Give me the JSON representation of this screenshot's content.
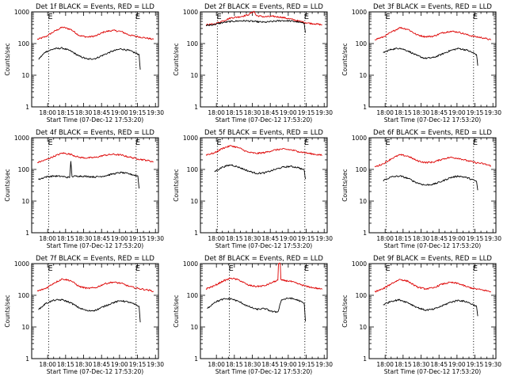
{
  "figure": {
    "background": "#ffffff",
    "events_color": "#000000",
    "lld_color": "#dd0000"
  },
  "chart_data": [
    {
      "type": "line",
      "title": "Det 1f BLACK = Events, RED = LLD",
      "xlabel": "Start Time (07-Dec-12 17:53:20)",
      "ylabel": "Counts/sec",
      "yscale": "log",
      "ylim": [
        1,
        1000
      ],
      "ytick_labels": [
        "1",
        "10",
        "100",
        "1000"
      ],
      "xlim_min": [
        -6.67,
        99.17
      ],
      "xtick_values_min": [
        6.67,
        21.67,
        36.67,
        51.67,
        66.67,
        81.67,
        96.67
      ],
      "xtick_labels": [
        "18:00",
        "18:15",
        "18:30",
        "18:45",
        "19:00",
        "19:15",
        "19:30"
      ],
      "markers": [
        {
          "label": "E",
          "x_min": 7.5
        },
        {
          "label": "E",
          "x_min": 80.5
        }
      ],
      "series": [
        {
          "color": "#dd0000",
          "x_min": [
            -2,
            5,
            12,
            19,
            26,
            33,
            40,
            47,
            54,
            61,
            68,
            75,
            82,
            89,
            95
          ],
          "values": [
            135,
            165,
            240,
            330,
            280,
            180,
            160,
            175,
            235,
            260,
            240,
            185,
            165,
            150,
            135
          ]
        },
        {
          "color": "#000000",
          "x_min": [
            -1,
            5,
            12,
            19,
            26,
            33,
            40,
            47,
            54,
            61,
            68,
            75,
            83,
            84
          ],
          "values": [
            32,
            55,
            68,
            72,
            58,
            40,
            32,
            34,
            45,
            58,
            68,
            60,
            45,
            15
          ]
        }
      ]
    },
    {
      "type": "line",
      "title": "Det 2f BLACK = Events, RED = LLD",
      "xlabel": "Start Time (07-Dec-12 17:53:20)",
      "ylabel": "Counts/sec",
      "yscale": "log",
      "ylim": [
        1,
        1000
      ],
      "ytick_labels": [
        "1",
        "10",
        "100",
        "1000"
      ],
      "xlim_min": [
        -6.67,
        99.17
      ],
      "xtick_values_min": [
        6.67,
        21.67,
        36.67,
        51.67,
        66.67,
        81.67,
        96.67
      ],
      "xtick_labels": [
        "18:00",
        "18:15",
        "18:30",
        "18:45",
        "19:00",
        "19:15",
        "19:30"
      ],
      "markers": [
        {
          "label": "E",
          "x_min": 7.5
        },
        {
          "label": "E",
          "x_min": 80.5
        }
      ],
      "series": [
        {
          "color": "#dd0000",
          "x_min": [
            -2,
            5,
            12,
            19,
            26,
            33,
            38,
            40,
            47,
            54,
            61,
            68,
            75,
            82,
            89,
            95
          ],
          "values": [
            390,
            410,
            520,
            650,
            700,
            800,
            1050,
            760,
            700,
            720,
            680,
            600,
            520,
            450,
            420,
            390
          ]
        },
        {
          "color": "#000000",
          "x_min": [
            -2,
            5,
            12,
            19,
            26,
            33,
            40,
            47,
            54,
            61,
            68,
            75,
            80,
            81
          ],
          "values": [
            370,
            400,
            460,
            500,
            520,
            520,
            490,
            470,
            500,
            530,
            520,
            480,
            430,
            220
          ]
        }
      ]
    },
    {
      "type": "line",
      "title": "Det 3f BLACK = Events, RED = LLD",
      "xlabel": "Start Time (07-Dec-12 17:53:20)",
      "ylabel": "Counts/sec",
      "yscale": "log",
      "ylim": [
        1,
        1000
      ],
      "ytick_labels": [
        "1",
        "10",
        "100",
        "1000"
      ],
      "xlim_min": [
        -6.67,
        99.17
      ],
      "xtick_values_min": [
        6.67,
        21.67,
        36.67,
        51.67,
        66.67,
        81.67,
        96.67
      ],
      "xtick_labels": [
        "18:00",
        "18:15",
        "18:30",
        "18:45",
        "19:00",
        "19:15",
        "19:30"
      ],
      "markers": [
        {
          "label": "E",
          "x_min": 7.5
        },
        {
          "label": "E",
          "x_min": 80.5
        }
      ],
      "series": [
        {
          "color": "#dd0000",
          "x_min": [
            -2,
            5,
            12,
            19,
            26,
            33,
            40,
            47,
            54,
            61,
            68,
            75,
            82,
            89,
            95
          ],
          "values": [
            135,
            160,
            230,
            320,
            280,
            190,
            165,
            170,
            215,
            245,
            230,
            190,
            165,
            150,
            130
          ]
        },
        {
          "color": "#000000",
          "x_min": [
            5,
            12,
            19,
            26,
            33,
            40,
            47,
            54,
            61,
            68,
            75,
            83,
            84
          ],
          "values": [
            52,
            66,
            72,
            58,
            42,
            34,
            36,
            46,
            60,
            70,
            62,
            45,
            20
          ]
        }
      ]
    },
    {
      "type": "line",
      "title": "Det 4f BLACK = Events, RED = LLD",
      "xlabel": "Start Time (07-Dec-12 17:53:20)",
      "ylabel": "Counts/sec",
      "yscale": "log",
      "ylim": [
        1,
        1000
      ],
      "ytick_labels": [
        "1",
        "10",
        "100",
        "1000"
      ],
      "xlim_min": [
        -6.67,
        99.17
      ],
      "xtick_values_min": [
        6.67,
        21.67,
        36.67,
        51.67,
        66.67,
        81.67,
        96.67
      ],
      "xtick_labels": [
        "18:00",
        "18:15",
        "18:30",
        "18:45",
        "19:00",
        "19:15",
        "19:30"
      ],
      "markers": [
        {
          "label": "E",
          "x_min": 7.5
        },
        {
          "label": "E",
          "x_min": 80.5
        }
      ],
      "series": [
        {
          "color": "#dd0000",
          "x_min": [
            -2,
            5,
            12,
            19,
            26,
            33,
            40,
            47,
            54,
            61,
            68,
            75,
            82,
            89,
            95
          ],
          "values": [
            165,
            200,
            260,
            330,
            300,
            240,
            230,
            240,
            280,
            300,
            285,
            245,
            215,
            195,
            175
          ]
        },
        {
          "color": "#000000",
          "x_min": [
            -1,
            5,
            12,
            19,
            25,
            26,
            27,
            33,
            40,
            47,
            54,
            61,
            68,
            75,
            82,
            83
          ],
          "values": [
            48,
            58,
            62,
            60,
            55,
            180,
            60,
            62,
            60,
            58,
            62,
            72,
            80,
            72,
            62,
            25
          ]
        }
      ]
    },
    {
      "type": "line",
      "title": "Det 5f BLACK = Events, RED = LLD",
      "xlabel": "Start Time (07-Dec-12 17:53:20)",
      "ylabel": "Counts/sec",
      "yscale": "log",
      "ylim": [
        1,
        1000
      ],
      "ytick_labels": [
        "1",
        "10",
        "100",
        "1000"
      ],
      "xlim_min": [
        -6.67,
        99.17
      ],
      "xtick_values_min": [
        6.67,
        21.67,
        36.67,
        51.67,
        66.67,
        81.67,
        96.67
      ],
      "xtick_labels": [
        "18:00",
        "18:15",
        "18:30",
        "18:45",
        "19:00",
        "19:15",
        "19:30"
      ],
      "markers": [
        {
          "label": "E",
          "x_min": 7.5
        },
        {
          "label": "E",
          "x_min": 80.5
        }
      ],
      "series": [
        {
          "color": "#dd0000",
          "x_min": [
            -2,
            5,
            12,
            19,
            26,
            33,
            40,
            47,
            54,
            61,
            68,
            75,
            82,
            89,
            95
          ],
          "values": [
            290,
            330,
            470,
            560,
            470,
            350,
            320,
            340,
            400,
            440,
            420,
            370,
            330,
            300,
            280
          ]
        },
        {
          "color": "#000000",
          "x_min": [
            5,
            12,
            19,
            26,
            33,
            40,
            47,
            54,
            61,
            68,
            75,
            80,
            81
          ],
          "values": [
            85,
            120,
            140,
            115,
            90,
            75,
            78,
            95,
            115,
            125,
            115,
            95,
            50
          ]
        }
      ]
    },
    {
      "type": "line",
      "title": "Det 6f BLACK = Events, RED = LLD",
      "xlabel": "Start Time (07-Dec-12 17:53:20)",
      "ylabel": "Counts/sec",
      "yscale": "log",
      "ylim": [
        1,
        1000
      ],
      "ytick_labels": [
        "1",
        "10",
        "100",
        "1000"
      ],
      "xlim_min": [
        -6.67,
        99.17
      ],
      "xtick_values_min": [
        6.67,
        21.67,
        36.67,
        51.67,
        66.67,
        81.67,
        96.67
      ],
      "xtick_labels": [
        "18:00",
        "18:15",
        "18:30",
        "18:45",
        "19:00",
        "19:15",
        "19:30"
      ],
      "markers": [
        {
          "label": "E",
          "x_min": 7.5
        },
        {
          "label": "E",
          "x_min": 80.5
        }
      ],
      "series": [
        {
          "color": "#dd0000",
          "x_min": [
            -2,
            5,
            12,
            19,
            26,
            33,
            40,
            47,
            54,
            61,
            68,
            75,
            82,
            89,
            95
          ],
          "values": [
            120,
            150,
            220,
            290,
            260,
            190,
            165,
            170,
            210,
            240,
            225,
            190,
            165,
            150,
            130
          ]
        },
        {
          "color": "#000000",
          "x_min": [
            5,
            12,
            19,
            26,
            33,
            40,
            47,
            54,
            61,
            68,
            75,
            83,
            84
          ],
          "values": [
            45,
            58,
            62,
            52,
            38,
            32,
            34,
            42,
            55,
            62,
            55,
            42,
            22
          ]
        }
      ]
    },
    {
      "type": "line",
      "title": "Det 7f BLACK = Events, RED = LLD",
      "xlabel": "Start Time (07-Dec-12 17:53:20)",
      "ylabel": "Counts/sec",
      "yscale": "log",
      "ylim": [
        1,
        1000
      ],
      "ytick_labels": [
        "1",
        "10",
        "100",
        "1000"
      ],
      "xlim_min": [
        -6.67,
        99.17
      ],
      "xtick_values_min": [
        6.67,
        21.67,
        36.67,
        51.67,
        66.67,
        81.67,
        96.67
      ],
      "xtick_labels": [
        "18:00",
        "18:15",
        "18:30",
        "18:45",
        "19:00",
        "19:15",
        "19:30"
      ],
      "markers": [
        {
          "label": "E",
          "x_min": 7.5
        },
        {
          "label": "E",
          "x_min": 80.5
        }
      ],
      "series": [
        {
          "color": "#dd0000",
          "x_min": [
            -2,
            5,
            12,
            19,
            26,
            33,
            40,
            47,
            54,
            61,
            68,
            75,
            82,
            89,
            95
          ],
          "values": [
            135,
            165,
            245,
            330,
            290,
            190,
            165,
            175,
            230,
            260,
            240,
            190,
            165,
            150,
            135
          ]
        },
        {
          "color": "#000000",
          "x_min": [
            -1,
            5,
            12,
            19,
            26,
            33,
            40,
            47,
            54,
            61,
            68,
            75,
            83,
            84
          ],
          "values": [
            35,
            55,
            70,
            72,
            58,
            40,
            32,
            34,
            45,
            58,
            68,
            60,
            45,
            14
          ]
        }
      ]
    },
    {
      "type": "line",
      "title": "Det 8f BLACK = Events, RED = LLD",
      "xlabel": "Start Time (07-Dec-12 17:53:20)",
      "ylabel": "Counts/sec",
      "yscale": "log",
      "ylim": [
        1,
        1000
      ],
      "ytick_labels": [
        "1",
        "10",
        "100",
        "1000"
      ],
      "xlim_min": [
        -6.67,
        99.17
      ],
      "xtick_values_min": [
        6.67,
        21.67,
        36.67,
        51.67,
        66.67,
        81.67,
        96.67
      ],
      "xtick_labels": [
        "18:00",
        "18:15",
        "18:30",
        "18:45",
        "19:00",
        "19:15",
        "19:30"
      ],
      "markers": [
        {
          "label": "E",
          "x_min": 17.5
        },
        {
          "label": "E",
          "x_min": 80.5
        }
      ],
      "series": [
        {
          "color": "#dd0000",
          "x_min": [
            -2,
            5,
            12,
            19,
            26,
            33,
            40,
            47,
            54,
            58,
            58.5,
            60,
            60.5,
            61,
            68,
            75,
            82,
            89,
            95
          ],
          "values": [
            160,
            200,
            280,
            350,
            300,
            210,
            190,
            200,
            260,
            300,
            1000,
            1000,
            320,
            300,
            280,
            230,
            190,
            170,
            155
          ]
        },
        {
          "color": "#000000",
          "x_min": [
            -1,
            5,
            12,
            19,
            26,
            33,
            40,
            47,
            54,
            58,
            61,
            68,
            75,
            80,
            81
          ],
          "values": [
            38,
            60,
            75,
            78,
            62,
            45,
            36,
            38,
            30,
            30,
            72,
            82,
            70,
            55,
            15
          ]
        }
      ]
    },
    {
      "type": "line",
      "title": "Det 9f BLACK = Events, RED = LLD",
      "xlabel": "Start Time (07-Dec-12 17:53:20)",
      "ylabel": "Counts/sec",
      "yscale": "log",
      "ylim": [
        1,
        1000
      ],
      "ytick_labels": [
        "1",
        "10",
        "100",
        "1000"
      ],
      "xlim_min": [
        -6.67,
        99.17
      ],
      "xtick_values_min": [
        6.67,
        21.67,
        36.67,
        51.67,
        66.67,
        81.67,
        96.67
      ],
      "xtick_labels": [
        "18:00",
        "18:15",
        "18:30",
        "18:45",
        "19:00",
        "19:15",
        "19:30"
      ],
      "markers": [
        {
          "label": "E",
          "x_min": 7.5
        },
        {
          "label": "E",
          "x_min": 80.5
        }
      ],
      "series": [
        {
          "color": "#dd0000",
          "x_min": [
            -2,
            5,
            12,
            19,
            26,
            33,
            40,
            47,
            54,
            61,
            68,
            75,
            82,
            89,
            95
          ],
          "values": [
            130,
            160,
            235,
            320,
            275,
            185,
            160,
            170,
            225,
            255,
            235,
            185,
            160,
            145,
            130
          ]
        },
        {
          "color": "#000000",
          "x_min": [
            5,
            12,
            19,
            26,
            33,
            40,
            47,
            54,
            61,
            68,
            75,
            83,
            84
          ],
          "values": [
            50,
            66,
            72,
            58,
            42,
            34,
            36,
            46,
            60,
            70,
            62,
            45,
            22
          ]
        }
      ]
    }
  ]
}
